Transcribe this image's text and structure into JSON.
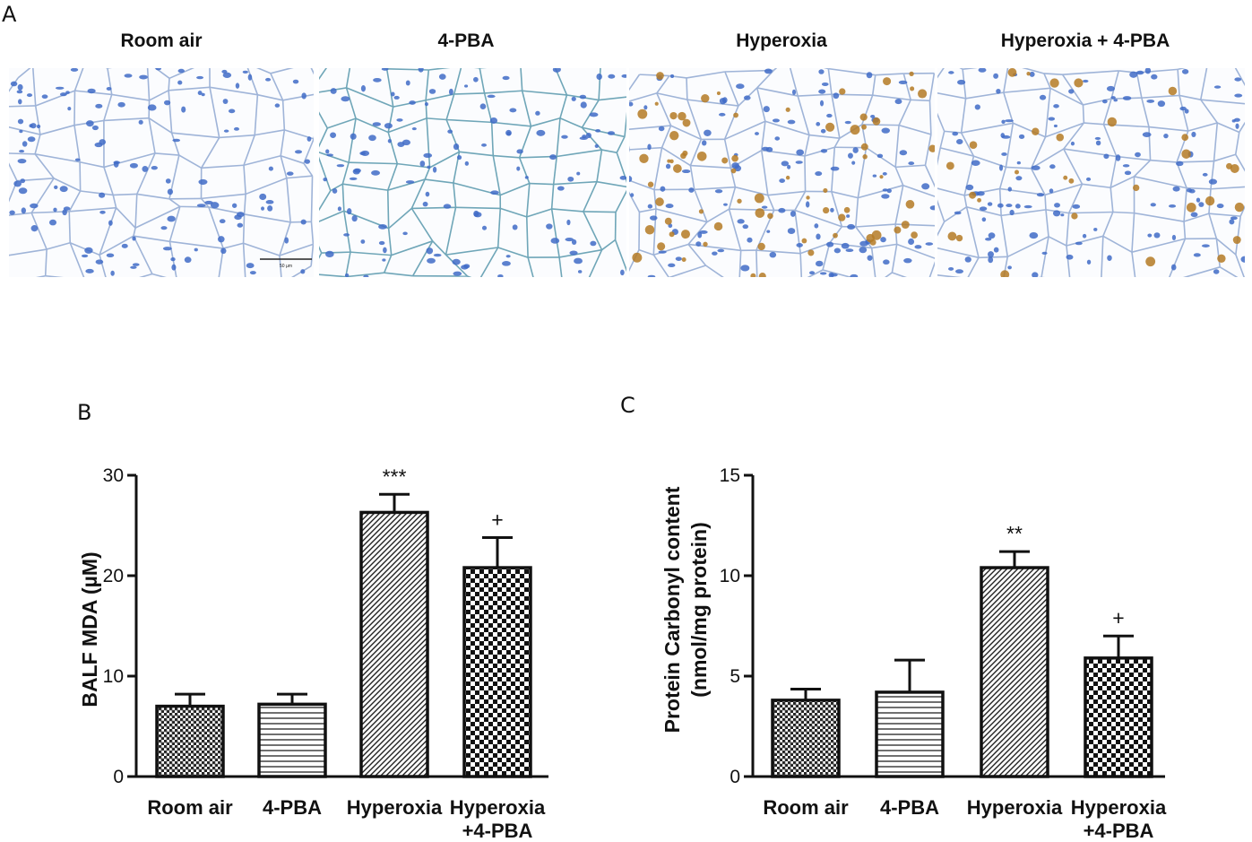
{
  "panel_labels": {
    "a": "A",
    "b": "B",
    "c": "C"
  },
  "micrographs": [
    {
      "title": "Room air",
      "stain": "blue",
      "scale_bar_label": "50 µm"
    },
    {
      "title": "4-PBA",
      "stain": "blue"
    },
    {
      "title": "Hyperoxia",
      "stain": "brown"
    },
    {
      "title": "Hyperoxia + 4-PBA",
      "stain": "mixed"
    }
  ],
  "colors": {
    "tissue_blue": "#3f6bc7",
    "stain_brown": "#b47a25",
    "bar_stroke": "#111111"
  },
  "chart_data": [
    {
      "type": "bar",
      "ylabel": "BALF MDA (µM)",
      "ylim": [
        0,
        30
      ],
      "yticks": [
        0,
        10,
        20,
        30
      ],
      "categories": [
        "Room air",
        "4-PBA",
        "Hyperoxia",
        "Hyperoxia\n+4-PBA"
      ],
      "values": [
        7.0,
        7.2,
        26.3,
        20.8
      ],
      "errors": [
        1.2,
        1.0,
        1.8,
        3.0
      ],
      "patterns": [
        "grid",
        "hlines",
        "diagonal",
        "checker"
      ],
      "annotations": [
        "",
        "",
        "***",
        "+"
      ]
    },
    {
      "type": "bar",
      "ylabel": "Protein Carbonyl content\n(nmol/mg protein)",
      "ylim": [
        0,
        15
      ],
      "yticks": [
        0,
        5,
        10,
        15
      ],
      "categories": [
        "Room air",
        "4-PBA",
        "Hyperoxia",
        "Hyperoxia\n+4-PBA"
      ],
      "values": [
        3.8,
        4.2,
        10.4,
        5.9
      ],
      "errors": [
        0.55,
        1.6,
        0.8,
        1.1
      ],
      "patterns": [
        "grid",
        "hlines",
        "diagonal",
        "checker"
      ],
      "annotations": [
        "",
        "",
        "**",
        "+"
      ]
    }
  ]
}
